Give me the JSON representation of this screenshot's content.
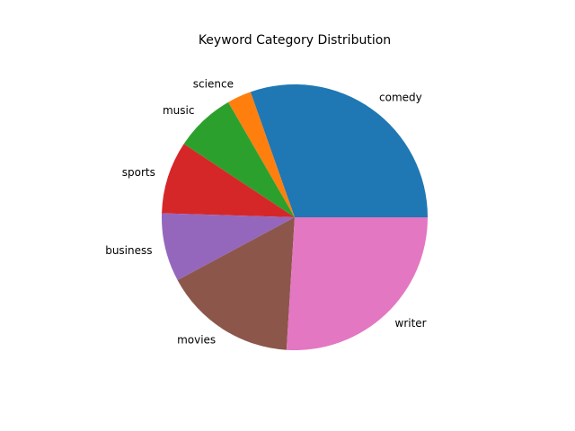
{
  "chart_data": {
    "type": "pie",
    "title": "Keyword Category Distribution",
    "start_angle_deg": 0,
    "direction": "counterclockwise",
    "slices": [
      {
        "label": "comedy",
        "value": 31.0,
        "color": "#1f77b4"
      },
      {
        "label": "science",
        "value": 3.0,
        "color": "#ff7f0e"
      },
      {
        "label": "music",
        "value": 7.5,
        "color": "#2ca02c"
      },
      {
        "label": "sports",
        "value": 9.0,
        "color": "#d62728"
      },
      {
        "label": "business",
        "value": 8.5,
        "color": "#9467bd"
      },
      {
        "label": "movies",
        "value": 16.5,
        "color": "#8c564b"
      },
      {
        "label": "writer",
        "value": 26.5,
        "color": "#e377c2"
      }
    ]
  }
}
